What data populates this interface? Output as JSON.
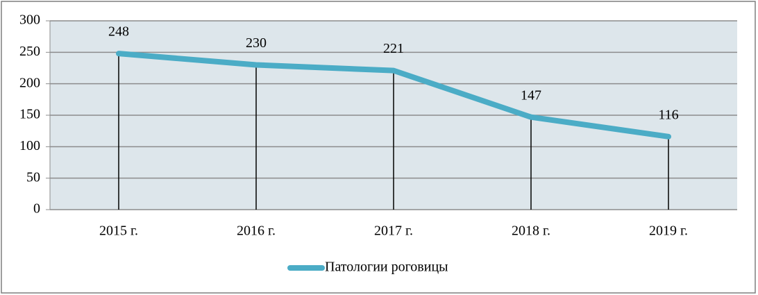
{
  "chart_data": {
    "type": "line",
    "categories": [
      "2015 г.",
      "2016 г.",
      "2017 г.",
      "2018 г.",
      "2019 г."
    ],
    "series": [
      {
        "name": "Патологии роговицы",
        "color": "#4bacc6",
        "values": [
          248,
          230,
          221,
          147,
          116
        ]
      }
    ],
    "ylim": [
      0,
      300
    ],
    "yticks": [
      0,
      50,
      100,
      150,
      200,
      250,
      300
    ],
    "grid": true,
    "drop_lines": true,
    "data_labels": true,
    "legend": "bottom",
    "plot_background": "#dde6eb"
  }
}
